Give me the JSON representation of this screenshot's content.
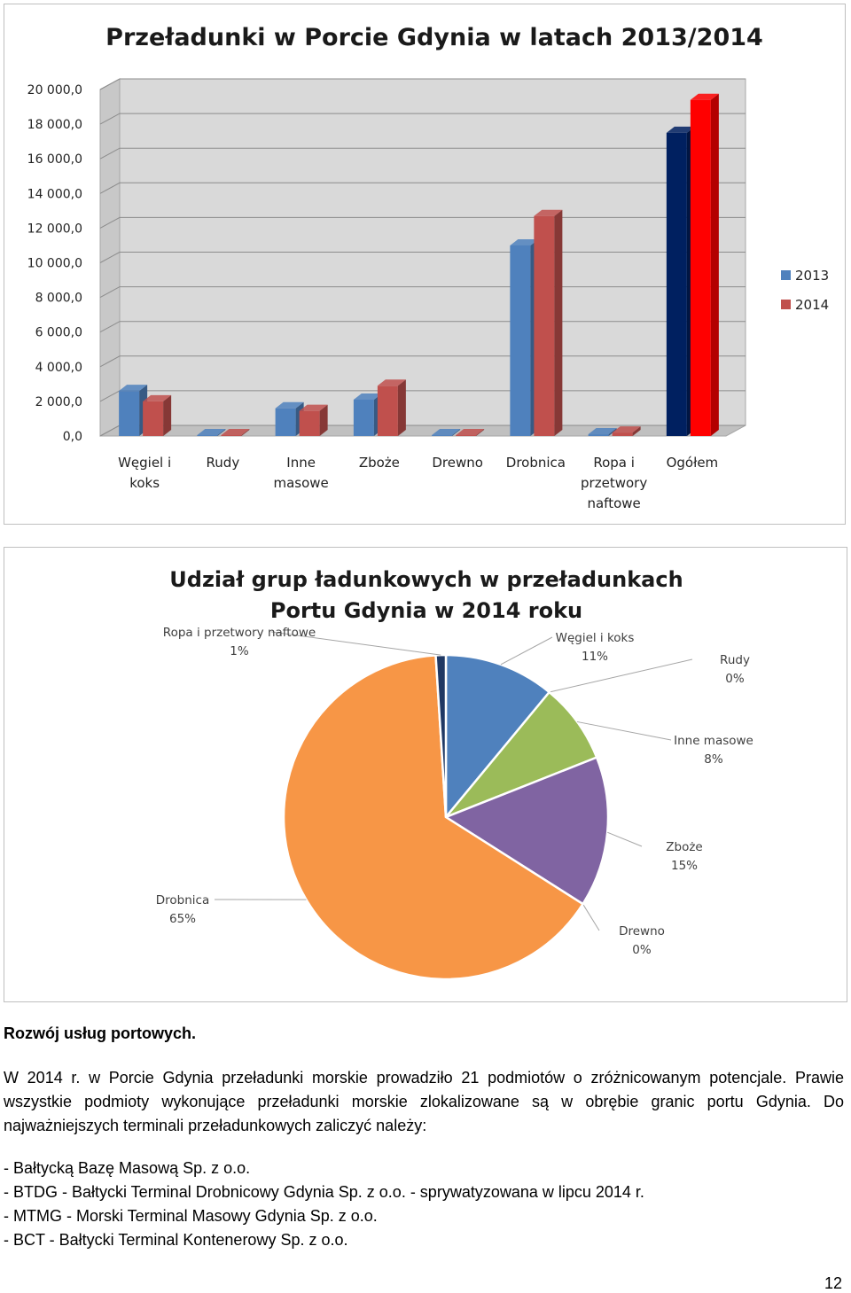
{
  "bar_chart": {
    "title": "Przeładunki w Porcie Gdynia w latach 2013/2014",
    "legend": [
      {
        "label": "2013",
        "color": "#4f81bd"
      },
      {
        "label": "2014",
        "color": "#c0504d"
      }
    ],
    "y_ticks": [
      "0,0",
      "2 000,0",
      "4 000,0",
      "6 000,0",
      "8 000,0",
      "10 000,0",
      "12 000,0",
      "14 000,0",
      "16 000,0",
      "18 000,0",
      "20 000,0"
    ],
    "categories": [
      [
        "Węgiel i",
        "koks"
      ],
      [
        "Rudy"
      ],
      [
        "Inne",
        "masowe"
      ],
      [
        "Zboże"
      ],
      [
        "Drewno"
      ],
      [
        "Drobnica"
      ],
      [
        "Ropa i",
        "przetwory",
        "naftowe"
      ],
      [
        "Ogółem"
      ]
    ],
    "highlight_colors": {
      "2013": "#002060",
      "2014": "#ff0000"
    }
  },
  "pie_chart": {
    "title_lines": [
      "Udział grup ładunkowych w przeładunkach",
      "Portu Gdynia w 2014 roku"
    ]
  },
  "chart_data": [
    {
      "type": "bar",
      "title": "Przeładunki w Porcie Gdynia w latach 2013/2014",
      "categories": [
        "Węgiel i koks",
        "Rudy",
        "Inne masowe",
        "Zboże",
        "Drewno",
        "Drobnica",
        "Ropa i przetwory naftowe",
        "Ogółem"
      ],
      "series": [
        {
          "name": "2013",
          "values": [
            2600,
            50,
            1600,
            2100,
            50,
            11000,
            100,
            17500
          ]
        },
        {
          "name": "2014",
          "values": [
            2000,
            50,
            1450,
            2900,
            50,
            12700,
            200,
            19400
          ]
        }
      ],
      "ylim": [
        0,
        20000
      ],
      "grid": true,
      "legend": "right"
    },
    {
      "type": "pie",
      "title": "Udział grup ładunkowych w przeładunkach Portu Gdynia w 2014 roku",
      "slices": [
        {
          "label": "Węgiel i koks",
          "pct_label": "11%",
          "value": 11,
          "color": "#4f81bd"
        },
        {
          "label": "Rudy",
          "pct_label": "0%",
          "value": 0,
          "color": "#c0504d"
        },
        {
          "label": "Inne masowe",
          "pct_label": "8%",
          "value": 8,
          "color": "#9bbb59"
        },
        {
          "label": "Zboże",
          "pct_label": "15%",
          "value": 15,
          "color": "#8064a2"
        },
        {
          "label": "Drewno",
          "pct_label": "0%",
          "value": 0,
          "color": "#4bacc6"
        },
        {
          "label": "Drobnica",
          "pct_label": "65%",
          "value": 65,
          "color": "#f79646"
        },
        {
          "label": "Ropa i przetwory naftowe",
          "pct_label": "1%",
          "value": 1,
          "color": "#1f3864"
        }
      ]
    }
  ],
  "text": {
    "heading": "Rozwój usług portowych.",
    "paragraph": "W 2014 r. w Porcie Gdynia przeładunki morskie prowadziło 21 podmiotów o zróżnicowanym potencjale. Prawie wszystkie podmioty wykonujące przeładunki morskie zlokalizowane są w obrębie granic portu Gdynia. Do najważniejszych terminali przeładunkowych zaliczyć należy:",
    "list": [
      "- Bałtycką Bazę Masową Sp. z o.o.",
      "- BTDG - Bałtycki Terminal Drobnicowy Gdynia Sp. z o.o. - sprywatyzowana w lipcu 2014 r.",
      "- MTMG - Morski Terminal Masowy Gdynia Sp. z o.o.",
      "- BCT - Bałtycki Terminal Kontenerowy Sp. z o.o."
    ],
    "page_number": "12"
  }
}
